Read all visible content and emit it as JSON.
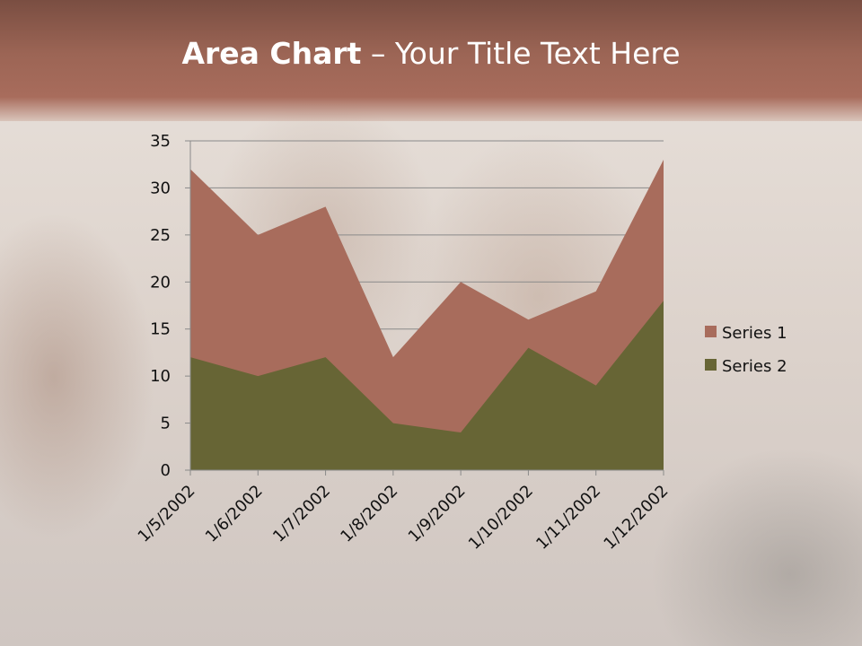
{
  "slide": {
    "title_bold": "Area Chart",
    "title_rest": " – Your Title Text Here"
  },
  "chart_data": {
    "type": "area",
    "title": "",
    "xlabel": "",
    "ylabel": "",
    "categories": [
      "1/5/2002",
      "1/6/2002",
      "1/7/2002",
      "1/8/2002",
      "1/9/2002",
      "1/10/2002",
      "1/11/2002",
      "1/12/2002"
    ],
    "series": [
      {
        "name": "Series 1",
        "values": [
          32,
          25,
          28,
          12,
          20,
          16,
          19,
          33
        ],
        "color": "#a86c5c"
      },
      {
        "name": "Series 2",
        "values": [
          12,
          10,
          12,
          5,
          4,
          13,
          9,
          18
        ],
        "color": "#676535"
      }
    ],
    "ylim": [
      0,
      35
    ],
    "yticks": [
      0,
      5,
      10,
      15,
      20,
      25,
      30,
      35
    ],
    "grid": true,
    "legend": "right"
  }
}
